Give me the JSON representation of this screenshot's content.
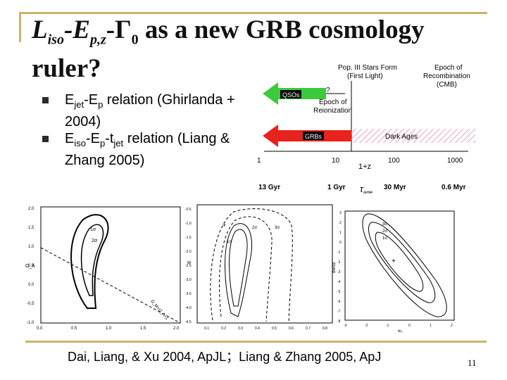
{
  "slide": {
    "title_parts": [
      "L",
      "iso",
      "-E",
      "p,z",
      "-Γ",
      "0",
      " as a new GRB cosmology ruler?"
    ],
    "bullets": [
      {
        "parts": [
          "E",
          "jet",
          "-E",
          "p",
          " relation (Ghirlanda + 2004)"
        ]
      },
      {
        "parts": [
          "E",
          "iso",
          "-E",
          "p",
          "-t",
          "jet",
          " relation (Liang & Zhang 2005)"
        ]
      }
    ],
    "citation": "Dai, Liang, & Xu 2004, ApJL；Liang & Zhang 2005, ApJ",
    "page_number": "11"
  },
  "timeline": {
    "header_left": "Pop. III Stars Form",
    "header_left_sub": "(First Light)",
    "header_right": "Epoch of",
    "header_right_sub1": "Recombination",
    "header_right_sub2": "(CMB)",
    "qso_label": "QSOs",
    "question_mark": "?",
    "reion_line1": "Epoch of",
    "reion_line2": "Reionization",
    "grb_label": "GRBs",
    "dark_ages_label": "Dark Ages",
    "z_ticks": [
      "1",
      "10",
      "100",
      "1000"
    ],
    "z_axis_label": "1+z",
    "age_ticks": [
      "13 Gyr",
      "1 Gyr",
      "30 Myr",
      "0.6 Myr"
    ],
    "age_axis_label": "τ",
    "age_axis_sub": "age",
    "colors": {
      "arrow": "#e8221c",
      "label_box": "#000000",
      "hatch": "#e8a0c8"
    }
  },
  "plots": {
    "left": {
      "ylabel": "Ω_Λ",
      "yticks": [
        "2.0",
        "1.5",
        "1.0",
        "0.5",
        "0.0",
        "-0.5",
        "-1.0"
      ],
      "xticks": [
        "0.0",
        "0.5",
        "1.0",
        "1.5",
        "2.0"
      ],
      "contours": [
        "1σ",
        "2σ"
      ],
      "line_label": "Ω_M+Ω_Λ=1"
    },
    "middle": {
      "ylabel": "w",
      "yticks": [
        "-0.5",
        "-1.0",
        "-1.5",
        "-2.0",
        "-2.5",
        "-3.0",
        "-3.5",
        "-4.0",
        "-4.5"
      ],
      "xticks": [
        "0.1",
        "0.2",
        "0.3",
        "0.4",
        "0.5",
        "0.6",
        "0.7",
        "0.8"
      ],
      "contours": [
        "1σ",
        "2σ",
        "3σ"
      ]
    },
    "right": {
      "ylabel": "dw/dz",
      "yticks": [
        "3",
        "2",
        "1",
        "0",
        "-1",
        "-2",
        "-3",
        "-4",
        "-5",
        "-6",
        "-7",
        "-8"
      ],
      "xticks": [
        "-3",
        "-2",
        "-1",
        "0",
        "1",
        "2"
      ],
      "xlabel": "w₀",
      "contours": [
        "3σ",
        "2σ",
        "1σ"
      ]
    }
  }
}
